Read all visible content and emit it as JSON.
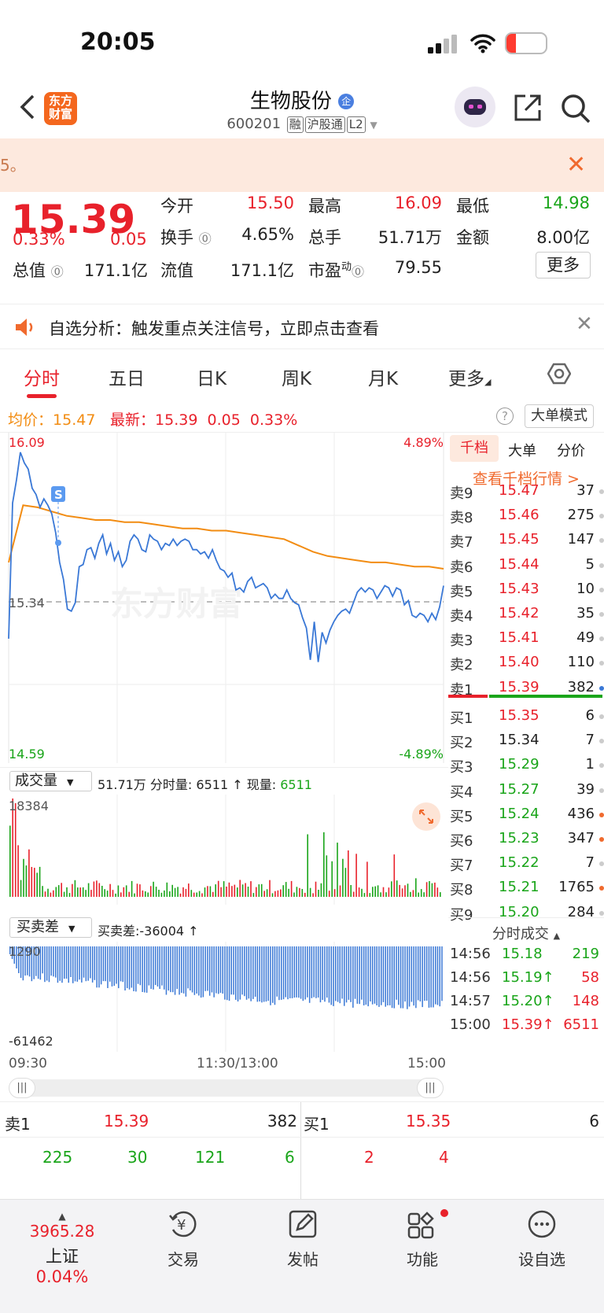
{
  "status": {
    "time": "20:05",
    "battery": "17"
  },
  "header": {
    "logo": "东方财富",
    "title": "生物股份",
    "title_badge": "企",
    "code": "600201",
    "tags": [
      "融",
      "沪股通",
      "L2"
    ]
  },
  "banner": {
    "text": "5。"
  },
  "quote": {
    "price": "15.39",
    "change_pct": "0.33%",
    "change": "0.05",
    "items": [
      {
        "label": "今开",
        "value": "15.50"
      },
      {
        "label": "最高",
        "value": "16.09"
      },
      {
        "label": "最低",
        "value": "14.98"
      },
      {
        "label": "换手",
        "value": "4.65%"
      },
      {
        "label": "总手",
        "value": "51.71万"
      },
      {
        "label": "金额",
        "value": "8.00亿"
      },
      {
        "label": "总值",
        "value": "171.1亿"
      },
      {
        "label": "流值",
        "value": "171.1亿"
      },
      {
        "label": "市盈",
        "sup": "动",
        "value": "79.55"
      }
    ],
    "more": "更多"
  },
  "signal": {
    "text": "自选分析：触发重点关注信号，立即点击查看"
  },
  "tabs": [
    "分时",
    "五日",
    "日K",
    "周K",
    "月K",
    "更多"
  ],
  "avg_bar": {
    "avg_label": "均价：",
    "avg": "15.47",
    "last_label": "最新：",
    "last": "15.39",
    "chg": "0.05",
    "pct": "0.33%",
    "mode": "大单模式"
  },
  "chart_data": [
    {
      "type": "line",
      "title": "",
      "series": [
        {
          "name": "最新",
          "values": [
            15.14,
            15.78,
            15.89,
            16.02,
            15.97,
            15.94,
            15.85,
            15.82,
            15.76,
            15.8,
            15.77,
            15.73,
            15.64,
            15.5,
            15.42,
            15.28,
            15.27,
            15.31,
            15.48,
            15.49,
            15.56,
            15.57,
            15.52,
            15.59,
            15.63,
            15.54,
            15.59,
            15.51,
            15.55,
            15.48,
            15.51,
            15.6,
            15.63,
            15.61,
            15.56,
            15.55,
            15.63,
            15.61,
            15.6,
            15.56,
            15.59,
            15.58,
            15.61,
            15.58,
            15.6,
            15.61,
            15.6,
            15.56,
            15.56,
            15.54,
            15.55,
            15.52,
            15.56,
            15.51,
            15.47,
            15.46,
            15.43,
            15.45,
            15.37,
            15.38,
            15.36,
            15.41,
            15.43,
            15.38,
            15.39,
            15.4,
            15.38,
            15.33,
            15.35,
            15.33,
            15.33,
            15.37,
            15.33,
            15.31,
            15.3,
            15.24,
            15.19,
            15.04,
            15.22,
            15.03,
            15.17,
            15.12,
            15.18,
            15.22,
            15.25,
            15.27,
            15.28,
            15.26,
            15.31,
            15.36,
            15.38,
            15.36,
            15.38,
            15.37,
            15.33,
            15.36,
            15.39,
            15.38,
            15.34,
            15.38,
            15.37,
            15.3,
            15.32,
            15.25,
            15.24,
            15.26,
            15.25,
            15.22,
            15.26,
            15.23,
            15.29,
            15.39
          ]
        },
        {
          "name": "均价",
          "values": [
            15.5,
            15.77,
            15.76,
            15.74,
            15.72,
            15.71,
            15.7,
            15.7,
            15.69,
            15.69,
            15.68,
            15.67,
            15.66,
            15.66,
            15.65,
            15.65,
            15.64,
            15.63,
            15.62,
            15.61,
            15.58,
            15.55,
            15.53,
            15.52,
            15.51,
            15.5,
            15.5,
            15.49,
            15.48,
            15.48,
            15.47
          ]
        }
      ],
      "ylim": [
        14.59,
        16.09
      ],
      "yticks": [
        "16.09",
        "15.34",
        "14.59"
      ],
      "pct_ticks": [
        "4.89%",
        "-4.89%"
      ],
      "preclose": "15.34",
      "x_ticks": [
        "09:30",
        "11:30/13:00",
        "15:00"
      ],
      "marker": "S"
    },
    {
      "type": "bar",
      "title": "成交量",
      "legend": {
        "total": "51.71万",
        "fs_label": "分时量:",
        "fs": "6511",
        "now_label": "现量:",
        "now": "6511"
      },
      "ymax": "18384"
    },
    {
      "type": "bar",
      "title": "买卖差",
      "legend": {
        "label": "买卖差:",
        "value": "-36004"
      },
      "yticks": [
        "1290",
        "-61462"
      ]
    }
  ],
  "orderbook": {
    "tabs": [
      "千档",
      "大单",
      "分价"
    ],
    "link": "查看千档行情 >",
    "sells": [
      {
        "l": "卖9",
        "p": "15.47",
        "v": "37"
      },
      {
        "l": "卖8",
        "p": "15.46",
        "v": "275"
      },
      {
        "l": "卖7",
        "p": "15.45",
        "v": "147"
      },
      {
        "l": "卖6",
        "p": "15.44",
        "v": "5"
      },
      {
        "l": "卖5",
        "p": "15.43",
        "v": "10"
      },
      {
        "l": "卖4",
        "p": "15.42",
        "v": "35"
      },
      {
        "l": "卖3",
        "p": "15.41",
        "v": "49"
      },
      {
        "l": "卖2",
        "p": "15.40",
        "v": "110"
      },
      {
        "l": "卖1",
        "p": "15.39",
        "v": "382"
      }
    ],
    "buys": [
      {
        "l": "买1",
        "p": "15.35",
        "v": "6"
      },
      {
        "l": "买2",
        "p": "15.34",
        "v": "7"
      },
      {
        "l": "买3",
        "p": "15.29",
        "v": "1"
      },
      {
        "l": "买4",
        "p": "15.27",
        "v": "39"
      },
      {
        "l": "买5",
        "p": "15.24",
        "v": "436"
      },
      {
        "l": "买6",
        "p": "15.23",
        "v": "347"
      },
      {
        "l": "买7",
        "p": "15.22",
        "v": "7"
      },
      {
        "l": "买8",
        "p": "15.21",
        "v": "1765"
      },
      {
        "l": "买9",
        "p": "15.20",
        "v": "284"
      }
    ],
    "trades_title": "分时成交",
    "trades": [
      {
        "t": "14:56",
        "p": "15.18",
        "v": "219"
      },
      {
        "t": "14:56",
        "p": "15.19↑",
        "v": "58"
      },
      {
        "t": "14:57",
        "p": "15.20↑",
        "v": "148"
      },
      {
        "t": "15:00",
        "p": "15.39↑",
        "v": "6511"
      }
    ]
  },
  "book": {
    "sell_label": "卖1",
    "sell_price": "15.39",
    "sell_vol": "382",
    "buy_label": "买1",
    "buy_price": "15.35",
    "buy_vol": "6",
    "queue_sell": [
      "225",
      "30",
      "121",
      "6"
    ],
    "queue_buy": [
      "2",
      "4"
    ]
  },
  "nav": {
    "index_value": "3965.28",
    "index_name": "上证",
    "index_pct": "0.04%",
    "items": [
      "交易",
      "发帖",
      "功能",
      "设自选"
    ]
  },
  "colors": {
    "up": "#e8212b",
    "down": "#1aa51a",
    "avg": "#f28c12",
    "price_line": "#3a78d6"
  }
}
